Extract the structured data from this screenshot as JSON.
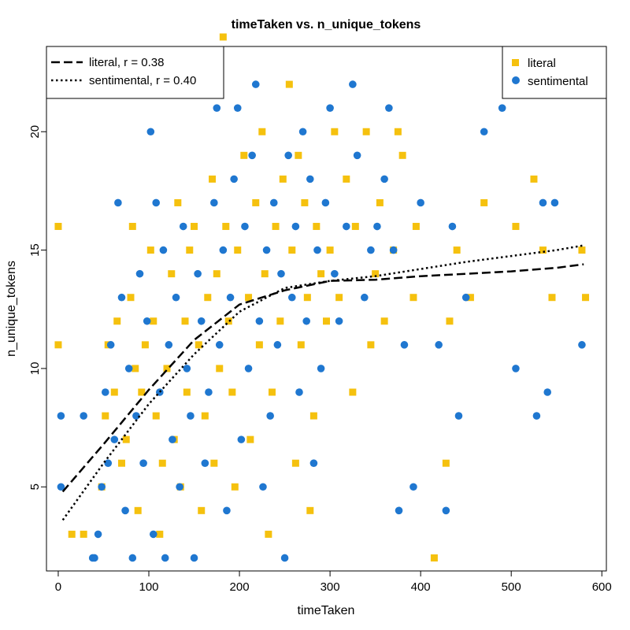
{
  "chart_data": {
    "type": "scatter",
    "title": "timeTaken vs. n_unique_tokens",
    "xlabel": "timeTaken",
    "ylabel": "n_unique_tokens",
    "xlim": [
      -13,
      605
    ],
    "ylim": [
      1.45,
      23.6
    ],
    "xticks": [
      0,
      100,
      200,
      300,
      400,
      500,
      600
    ],
    "yticks": [
      5,
      10,
      15,
      20
    ],
    "colors": {
      "literal": "#F5C10E",
      "sentimental": "#1F77D0"
    },
    "series": [
      {
        "name": "literal",
        "marker": "square",
        "color": "#F5C10E",
        "points": [
          [
            0,
            16
          ],
          [
            0,
            11
          ],
          [
            15,
            3
          ],
          [
            28,
            3
          ],
          [
            48,
            5
          ],
          [
            52,
            8
          ],
          [
            55,
            11
          ],
          [
            62,
            9
          ],
          [
            65,
            12
          ],
          [
            70,
            6
          ],
          [
            75,
            7
          ],
          [
            80,
            13
          ],
          [
            82,
            16
          ],
          [
            85,
            10
          ],
          [
            88,
            4
          ],
          [
            92,
            9
          ],
          [
            96,
            11
          ],
          [
            102,
            15
          ],
          [
            105,
            12
          ],
          [
            108,
            8
          ],
          [
            112,
            3
          ],
          [
            115,
            6
          ],
          [
            120,
            10
          ],
          [
            125,
            14
          ],
          [
            128,
            7
          ],
          [
            132,
            17
          ],
          [
            135,
            5
          ],
          [
            140,
            12
          ],
          [
            142,
            9
          ],
          [
            145,
            15
          ],
          [
            150,
            16
          ],
          [
            155,
            11
          ],
          [
            158,
            4
          ],
          [
            162,
            8
          ],
          [
            165,
            13
          ],
          [
            170,
            18
          ],
          [
            172,
            6
          ],
          [
            175,
            14
          ],
          [
            178,
            10
          ],
          [
            182,
            24
          ],
          [
            185,
            16
          ],
          [
            188,
            12
          ],
          [
            192,
            9
          ],
          [
            195,
            5
          ],
          [
            198,
            15
          ],
          [
            205,
            19
          ],
          [
            210,
            13
          ],
          [
            212,
            7
          ],
          [
            218,
            17
          ],
          [
            222,
            11
          ],
          [
            225,
            20
          ],
          [
            228,
            14
          ],
          [
            232,
            3
          ],
          [
            236,
            9
          ],
          [
            240,
            16
          ],
          [
            245,
            12
          ],
          [
            248,
            18
          ],
          [
            255,
            22
          ],
          [
            258,
            15
          ],
          [
            262,
            6
          ],
          [
            265,
            19
          ],
          [
            268,
            11
          ],
          [
            272,
            17
          ],
          [
            275,
            13
          ],
          [
            278,
            4
          ],
          [
            282,
            8
          ],
          [
            285,
            16
          ],
          [
            290,
            14
          ],
          [
            296,
            12
          ],
          [
            300,
            15
          ],
          [
            305,
            20
          ],
          [
            310,
            13
          ],
          [
            318,
            18
          ],
          [
            325,
            9
          ],
          [
            328,
            16
          ],
          [
            340,
            20
          ],
          [
            345,
            11
          ],
          [
            350,
            14
          ],
          [
            355,
            17
          ],
          [
            360,
            12
          ],
          [
            370,
            15
          ],
          [
            375,
            20
          ],
          [
            380,
            19
          ],
          [
            392,
            13
          ],
          [
            395,
            16
          ],
          [
            415,
            2
          ],
          [
            428,
            6
          ],
          [
            432,
            12
          ],
          [
            440,
            15
          ],
          [
            455,
            13
          ],
          [
            470,
            17
          ],
          [
            505,
            16
          ],
          [
            525,
            18
          ],
          [
            535,
            15
          ],
          [
            545,
            13
          ],
          [
            578,
            15
          ],
          [
            582,
            13
          ]
        ]
      },
      {
        "name": "sentimental",
        "marker": "circle",
        "color": "#1F77D0",
        "points": [
          [
            3,
            8
          ],
          [
            3,
            5
          ],
          [
            28,
            8
          ],
          [
            38,
            2
          ],
          [
            40,
            2
          ],
          [
            44,
            3
          ],
          [
            48,
            5
          ],
          [
            52,
            9
          ],
          [
            55,
            6
          ],
          [
            58,
            11
          ],
          [
            62,
            7
          ],
          [
            66,
            17
          ],
          [
            70,
            13
          ],
          [
            74,
            4
          ],
          [
            78,
            10
          ],
          [
            82,
            2
          ],
          [
            86,
            8
          ],
          [
            90,
            14
          ],
          [
            94,
            6
          ],
          [
            98,
            12
          ],
          [
            102,
            20
          ],
          [
            105,
            3
          ],
          [
            108,
            17
          ],
          [
            112,
            9
          ],
          [
            116,
            15
          ],
          [
            118,
            2
          ],
          [
            122,
            11
          ],
          [
            126,
            7
          ],
          [
            130,
            13
          ],
          [
            134,
            5
          ],
          [
            138,
            16
          ],
          [
            142,
            10
          ],
          [
            146,
            8
          ],
          [
            150,
            2
          ],
          [
            154,
            14
          ],
          [
            158,
            12
          ],
          [
            162,
            6
          ],
          [
            166,
            9
          ],
          [
            172,
            17
          ],
          [
            175,
            21
          ],
          [
            178,
            11
          ],
          [
            182,
            15
          ],
          [
            186,
            4
          ],
          [
            190,
            13
          ],
          [
            194,
            18
          ],
          [
            198,
            21
          ],
          [
            202,
            7
          ],
          [
            206,
            16
          ],
          [
            210,
            10
          ],
          [
            214,
            19
          ],
          [
            218,
            22
          ],
          [
            222,
            12
          ],
          [
            226,
            5
          ],
          [
            230,
            15
          ],
          [
            234,
            8
          ],
          [
            238,
            17
          ],
          [
            242,
            11
          ],
          [
            246,
            14
          ],
          [
            250,
            2
          ],
          [
            254,
            19
          ],
          [
            258,
            13
          ],
          [
            262,
            16
          ],
          [
            266,
            9
          ],
          [
            270,
            20
          ],
          [
            274,
            12
          ],
          [
            278,
            18
          ],
          [
            282,
            6
          ],
          [
            286,
            15
          ],
          [
            290,
            10
          ],
          [
            295,
            17
          ],
          [
            300,
            21
          ],
          [
            305,
            14
          ],
          [
            310,
            12
          ],
          [
            318,
            16
          ],
          [
            325,
            22
          ],
          [
            330,
            19
          ],
          [
            338,
            13
          ],
          [
            345,
            15
          ],
          [
            352,
            16
          ],
          [
            360,
            18
          ],
          [
            365,
            21
          ],
          [
            370,
            15
          ],
          [
            376,
            4
          ],
          [
            382,
            11
          ],
          [
            392,
            5
          ],
          [
            400,
            17
          ],
          [
            420,
            11
          ],
          [
            428,
            4
          ],
          [
            435,
            16
          ],
          [
            442,
            8
          ],
          [
            450,
            13
          ],
          [
            470,
            20
          ],
          [
            490,
            21
          ],
          [
            505,
            10
          ],
          [
            528,
            8
          ],
          [
            535,
            17
          ],
          [
            540,
            9
          ],
          [
            548,
            17
          ],
          [
            578,
            11
          ]
        ]
      }
    ],
    "fit_lines": [
      {
        "name": "literal, r = 0.38",
        "style": "dashed",
        "x": [
          5,
          50,
          100,
          150,
          200,
          250,
          300,
          350,
          400,
          450,
          500,
          550,
          580
        ],
        "y": [
          4.8,
          6.8,
          9.1,
          11.2,
          12.7,
          13.3,
          13.7,
          13.75,
          13.9,
          14.0,
          14.1,
          14.25,
          14.4
        ]
      },
      {
        "name": "sentimental, r = 0.40",
        "style": "dotted",
        "x": [
          5,
          50,
          100,
          150,
          200,
          250,
          300,
          350,
          400,
          450,
          500,
          550,
          580
        ],
        "y": [
          3.6,
          6.0,
          8.5,
          10.6,
          12.4,
          13.4,
          13.7,
          13.9,
          14.2,
          14.5,
          14.75,
          15.0,
          15.2
        ]
      }
    ],
    "legends": {
      "lines_position": "top-left",
      "points_position": "top-right",
      "line_entries": [
        {
          "label": "literal, r = 0.38",
          "style": "dashed"
        },
        {
          "label": "sentimental, r = 0.40",
          "style": "dotted"
        }
      ],
      "point_entries": [
        {
          "label": "literal",
          "marker": "square",
          "color": "#F5C10E"
        },
        {
          "label": "sentimental",
          "marker": "circle",
          "color": "#1F77D0"
        }
      ]
    }
  }
}
